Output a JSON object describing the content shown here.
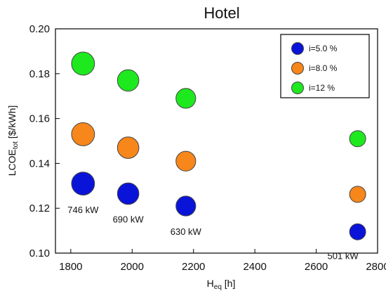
{
  "chart_data": {
    "type": "scatter",
    "title": "Hotel",
    "xlabel": {
      "main": "H",
      "sub": "eq",
      "rest": " [h]"
    },
    "ylabel": {
      "main": "LCOE",
      "sub": "tot",
      "rest": " [$/kWh]"
    },
    "xlim": [
      1750,
      2800
    ],
    "ylim": [
      0.1,
      0.2
    ],
    "x_ticks": [
      1800,
      2000,
      2200,
      2400,
      2600,
      2800
    ],
    "y_ticks": [
      0.1,
      0.12,
      0.14,
      0.16,
      0.18,
      0.2
    ],
    "x_tick_labels": [
      "1800",
      "2000",
      "2200",
      "2400",
      "2600",
      "2800"
    ],
    "y_tick_labels": [
      "0.10",
      "0.12",
      "0.14",
      "0.16",
      "0.18",
      "0.20"
    ],
    "grid": false,
    "legend_position": "top-right",
    "x": [
      1840,
      1987,
      2175,
      2735
    ],
    "power_kw": [
      746,
      690,
      630,
      501
    ],
    "series": [
      {
        "name": "i=5.0 %",
        "color": "#0a14d8",
        "y": [
          0.131,
          0.1265,
          0.121,
          0.1095
        ]
      },
      {
        "name": "i=8.0 %",
        "color": "#f7861b",
        "y": [
          0.153,
          0.147,
          0.141,
          0.1262
        ]
      },
      {
        "name": "i=12 %",
        "color": "#1ee81e",
        "y": [
          0.1845,
          0.177,
          0.169,
          0.151
        ]
      }
    ],
    "annotations": [
      "746 kW",
      "690 kW",
      "630 kW",
      "501 kW"
    ]
  }
}
